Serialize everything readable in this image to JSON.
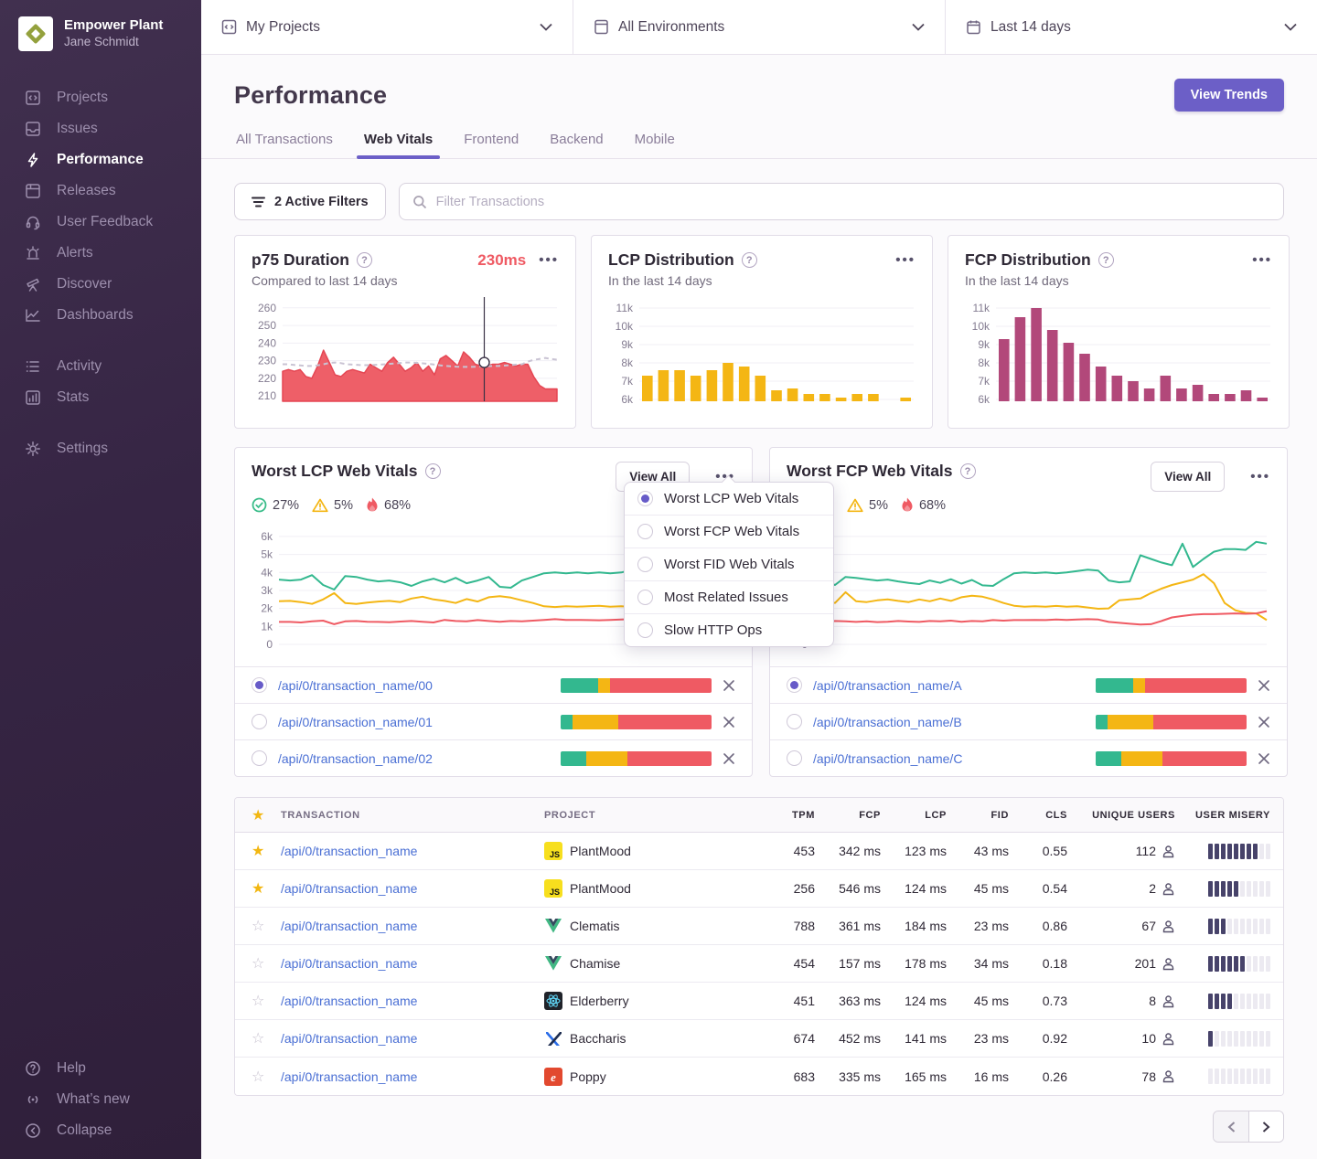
{
  "colors": {
    "accent": "#6c5fc7",
    "link": "#4a6fd4",
    "red": "#ef5a63",
    "green": "#33b88f",
    "yellow": "#f4b614",
    "magenta": "#b2487a",
    "misery_on": "#47436a",
    "misery_off": "#eceaf1",
    "grid": "#f1eff5"
  },
  "sidebar": {
    "org_name": "Empower Plant",
    "user_name": "Jane Schmidt",
    "items": [
      {
        "label": "Projects",
        "icon": "projects-icon",
        "active": false
      },
      {
        "label": "Issues",
        "icon": "issues-icon",
        "active": false
      },
      {
        "label": "Performance",
        "icon": "lightning-icon",
        "active": true
      },
      {
        "label": "Releases",
        "icon": "releases-icon",
        "active": false
      },
      {
        "label": "User Feedback",
        "icon": "feedback-icon",
        "active": false
      },
      {
        "label": "Alerts",
        "icon": "siren-icon",
        "active": false
      },
      {
        "label": "Discover",
        "icon": "telescope-icon",
        "active": false
      },
      {
        "label": "Dashboards",
        "icon": "dashboards-icon",
        "active": false
      }
    ],
    "items2": [
      {
        "label": "Activity",
        "icon": "activity-icon",
        "active": false
      },
      {
        "label": "Stats",
        "icon": "stats-icon",
        "active": false
      }
    ],
    "items3": [
      {
        "label": "Settings",
        "icon": "gear-icon",
        "active": false
      }
    ],
    "bottom": [
      {
        "label": "Help",
        "icon": "help-icon"
      },
      {
        "label": "What’s new",
        "icon": "broadcast-icon"
      },
      {
        "label": "Collapse",
        "icon": "collapse-icon"
      }
    ]
  },
  "topbar": {
    "projects": "My Projects",
    "environments": "All Environments",
    "daterange": "Last 14 days"
  },
  "header": {
    "title": "Performance",
    "view_trends": "View Trends",
    "tabs": [
      {
        "label": "All Transactions",
        "active": false
      },
      {
        "label": "Web Vitals",
        "active": true
      },
      {
        "label": "Frontend",
        "active": false
      },
      {
        "label": "Backend",
        "active": false
      },
      {
        "label": "Mobile",
        "active": false
      }
    ]
  },
  "filters": {
    "active_filters": "2 Active Filters",
    "search_placeholder": "Filter Transactions"
  },
  "cards": {
    "p75": {
      "title": "p75 Duration",
      "value": "230ms",
      "subtitle": "Compared to last 14 days"
    },
    "lcp": {
      "title": "LCP Distribution",
      "subtitle": "In the last 14 days"
    },
    "fcp": {
      "title": "FCP Distribution",
      "subtitle": "In the last 14 days"
    }
  },
  "vitals": {
    "left": {
      "title": "Worst LCP Web Vitals",
      "view_all": "View All",
      "badges": [
        {
          "icon": "check-circle-icon",
          "value": "27%"
        },
        {
          "icon": "warning-icon",
          "value": "5%"
        },
        {
          "icon": "fire-icon",
          "value": "68%"
        }
      ],
      "rows": [
        {
          "label": "/api/0/transaction_name/00",
          "selected": true,
          "bar": [
            25,
            8,
            67
          ]
        },
        {
          "label": "/api/0/transaction_name/01",
          "selected": false,
          "bar": [
            8,
            30,
            62
          ]
        },
        {
          "label": "/api/0/transaction_name/02",
          "selected": false,
          "bar": [
            17,
            27,
            56
          ]
        }
      ]
    },
    "right": {
      "title": "Worst FCP Web Vitals",
      "view_all": "View All",
      "badges": [
        {
          "icon": "warning-icon",
          "value": "5%"
        },
        {
          "icon": "fire-icon",
          "value": "68%"
        }
      ],
      "rows": [
        {
          "label": "/api/0/transaction_name/A",
          "selected": true,
          "bar": [
            25,
            8,
            67
          ]
        },
        {
          "label": "/api/0/transaction_name/B",
          "selected": false,
          "bar": [
            8,
            30,
            62
          ]
        },
        {
          "label": "/api/0/transaction_name/C",
          "selected": false,
          "bar": [
            17,
            27,
            56
          ]
        }
      ]
    },
    "menu": {
      "items": [
        {
          "label": "Worst LCP Web Vitals",
          "selected": true
        },
        {
          "label": "Worst FCP Web Vitals",
          "selected": false
        },
        {
          "label": "Worst FID Web Vitals",
          "selected": false
        },
        {
          "label": "Most Related Issues",
          "selected": false
        },
        {
          "label": "Slow HTTP Ops",
          "selected": false
        }
      ]
    }
  },
  "table": {
    "columns": [
      "TRANSACTION",
      "PROJECT",
      "TPM",
      "FCP",
      "LCP",
      "FID",
      "CLS",
      "UNIQUE USERS",
      "USER MISERY"
    ],
    "rows": [
      {
        "starred": true,
        "transaction": "/api/0/transaction_name",
        "project": "PlantMood",
        "platform": "js",
        "tpm": "453",
        "fcp": "342 ms",
        "lcp": "123 ms",
        "fid": "43 ms",
        "cls": "0.55",
        "users": "112",
        "misery": 8
      },
      {
        "starred": true,
        "transaction": "/api/0/transaction_name",
        "project": "PlantMood",
        "platform": "js",
        "tpm": "256",
        "fcp": "546 ms",
        "lcp": "124 ms",
        "fid": "45 ms",
        "cls": "0.54",
        "users": "2",
        "misery": 5
      },
      {
        "starred": false,
        "transaction": "/api/0/transaction_name",
        "project": "Clematis",
        "platform": "vue",
        "tpm": "788",
        "fcp": "361 ms",
        "lcp": "184 ms",
        "fid": "23 ms",
        "cls": "0.86",
        "users": "67",
        "misery": 3
      },
      {
        "starred": false,
        "transaction": "/api/0/transaction_name",
        "project": "Chamise",
        "platform": "vue",
        "tpm": "454",
        "fcp": "157 ms",
        "lcp": "178 ms",
        "fid": "34 ms",
        "cls": "0.18",
        "users": "201",
        "misery": 6
      },
      {
        "starred": false,
        "transaction": "/api/0/transaction_name",
        "project": "Elderberry",
        "platform": "react",
        "tpm": "451",
        "fcp": "363 ms",
        "lcp": "124 ms",
        "fid": "45 ms",
        "cls": "0.73",
        "users": "8",
        "misery": 4
      },
      {
        "starred": false,
        "transaction": "/api/0/transaction_name",
        "project": "Baccharis",
        "platform": "x",
        "tpm": "674",
        "fcp": "452 ms",
        "lcp": "141 ms",
        "fid": "23 ms",
        "cls": "0.92",
        "users": "10",
        "misery": 1
      },
      {
        "starred": false,
        "transaction": "/api/0/transaction_name",
        "project": "Poppy",
        "platform": "ember",
        "tpm": "683",
        "fcp": "335 ms",
        "lcp": "165 ms",
        "fid": "16 ms",
        "cls": "0.26",
        "users": "78",
        "misery": 0
      }
    ]
  },
  "chart_data": [
    {
      "id": "p75",
      "type": "area",
      "title": "p75 Duration (ms)",
      "ylim": [
        207,
        263
      ],
      "yticks": [
        210,
        220,
        230,
        240,
        250,
        260
      ],
      "values": [
        224,
        225,
        224,
        225,
        221,
        220,
        227,
        236,
        229,
        222,
        221,
        224,
        225,
        224,
        223,
        228,
        226,
        224,
        229,
        232,
        228,
        224,
        226,
        229,
        224,
        227,
        222,
        231,
        233,
        230,
        227,
        235,
        232,
        228,
        227,
        227,
        228,
        228,
        229,
        228,
        227,
        228,
        228,
        221,
        216,
        214,
        214,
        214
      ],
      "trend": [
        228,
        228,
        227.6,
        227.4,
        227,
        227,
        227.4,
        228,
        228.8,
        229,
        228.6,
        228,
        227.8,
        227.6,
        227.5,
        227.5,
        227.7,
        227.9,
        228.1,
        228.4,
        228.7,
        229,
        229,
        228.8,
        228.5,
        228.2,
        227.8,
        227.4,
        227,
        226.8,
        226.6,
        226.5,
        226.5,
        226.6,
        226.8,
        226.9,
        227,
        227,
        227.2,
        227.5,
        227.8,
        228,
        229.5,
        230.5,
        231,
        231.6,
        231,
        230.6
      ],
      "hover_frac": 0.735,
      "hover_value": 229
    },
    {
      "id": "lcp_dist",
      "type": "bar",
      "title": "LCP Distribution",
      "ylim": [
        5.9,
        11.3
      ],
      "yticks": [
        6,
        7,
        8,
        9,
        10,
        11
      ],
      "ytick_suffix": "k",
      "values": [
        7.3,
        7.6,
        7.6,
        7.3,
        7.6,
        8.0,
        7.8,
        7.3,
        6.5,
        6.6,
        6.3,
        6.3,
        6.1,
        6.3,
        6.3,
        null,
        6.1
      ]
    },
    {
      "id": "fcp_dist",
      "type": "bar",
      "title": "FCP Distribution",
      "ylim": [
        5.9,
        11.3
      ],
      "yticks": [
        6,
        7,
        8,
        9,
        10,
        11
      ],
      "ytick_suffix": "k",
      "values": [
        9.3,
        10.5,
        11.0,
        9.8,
        9.1,
        8.5,
        7.8,
        7.3,
        7.0,
        6.6,
        7.3,
        6.6,
        6.8,
        6.3,
        6.3,
        6.5,
        6.1
      ]
    },
    {
      "id": "worst_lcp",
      "type": "line",
      "title": "Worst LCP Web Vitals",
      "ylim": [
        0,
        6400
      ],
      "yticks": [
        0,
        1000,
        2000,
        3000,
        4000,
        5000,
        6000
      ],
      "ytick_labels": [
        "0",
        "1k",
        "2k",
        "3k",
        "4k",
        "5k",
        "6k"
      ],
      "series": [
        {
          "name": "good",
          "values": [
            3600,
            3550,
            3600,
            3850,
            3300,
            3050,
            3800,
            3750,
            3600,
            3500,
            3550,
            3450,
            3250,
            3500,
            3650,
            3450,
            3700,
            3400,
            3550,
            3750,
            3200,
            3150,
            3550,
            3750,
            3950,
            4000,
            3950,
            4000,
            3950,
            4000,
            3950,
            4000,
            4150,
            4200,
            4150,
            3500,
            3400,
            3450,
            5200,
            5050,
            4850,
            4650
          ]
        },
        {
          "name": "meh",
          "values": [
            2400,
            2420,
            2350,
            2250,
            2500,
            2850,
            2300,
            2250,
            2320,
            2380,
            2420,
            2350,
            2550,
            2650,
            2500,
            2420,
            2300,
            2520,
            2380,
            2620,
            2680,
            2600,
            2450,
            2300,
            2120,
            2080,
            2120,
            2100,
            2120,
            2150,
            2100,
            2120,
            2080,
            1980,
            2020,
            2000,
            2420,
            2500,
            2600,
            2950,
            3150,
            3450
          ]
        },
        {
          "name": "poor",
          "values": [
            1250,
            1250,
            1220,
            1280,
            1320,
            1120,
            1280,
            1300,
            1260,
            1250,
            1230,
            1270,
            1300,
            1260,
            1220,
            1360,
            1300,
            1280,
            1350,
            1300,
            1260,
            1300,
            1280,
            1320,
            1360,
            1400,
            1360,
            1360,
            1350,
            1340,
            1360,
            1380,
            1400,
            1420,
            1420,
            1300,
            1260,
            1200,
            1100,
            1050,
            1000,
            950
          ]
        }
      ]
    },
    {
      "id": "worst_fcp",
      "type": "line",
      "title": "Worst FCP Web Vitals",
      "ylim": [
        0,
        6400
      ],
      "yticks": [
        0,
        1000,
        2000,
        3000,
        4000,
        5000,
        6000
      ],
      "ytick_labels": [
        "0",
        "1k",
        "2k",
        "3k",
        "4k",
        "5k",
        "6k"
      ],
      "series": [
        {
          "name": "good",
          "values": [
            3750,
            3500,
            3300,
            3750,
            3700,
            3620,
            3550,
            3600,
            3500,
            3420,
            3350,
            3550,
            3420,
            3620,
            3380,
            3580,
            3280,
            3250,
            3620,
            3950,
            4000,
            3960,
            4000,
            3950,
            4000,
            4080,
            4150,
            4100,
            3550,
            3450,
            3500,
            4950,
            4750,
            4550,
            4400,
            5600,
            4300,
            4750,
            5150,
            5300,
            5300,
            5250,
            5700,
            5600
          ]
        },
        {
          "name": "meh",
          "values": [
            2420,
            2450,
            2300,
            2900,
            2400,
            2350,
            2450,
            2500,
            2420,
            2350,
            2500,
            2400,
            2550,
            2420,
            2620,
            2700,
            2650,
            2500,
            2300,
            2150,
            2100,
            2120,
            2100,
            2140,
            2100,
            2120,
            2050,
            1980,
            2000,
            2450,
            2500,
            2550,
            2850,
            3100,
            3300,
            3450,
            3600,
            3900,
            3400,
            2300,
            1900,
            1750,
            1720,
            1350
          ]
        },
        {
          "name": "poor",
          "values": [
            1280,
            1220,
            1300,
            1280,
            1250,
            1280,
            1240,
            1260,
            1300,
            1270,
            1250,
            1300,
            1280,
            1320,
            1260,
            1300,
            1280,
            1350,
            1320,
            1350,
            1350,
            1360,
            1350,
            1380,
            1360,
            1380,
            1400,
            1380,
            1250,
            1200,
            1150,
            1100,
            1120,
            1300,
            1500,
            1580,
            1650,
            1680,
            1680,
            1700,
            1720,
            1700,
            1720,
            1850
          ]
        }
      ]
    }
  ]
}
